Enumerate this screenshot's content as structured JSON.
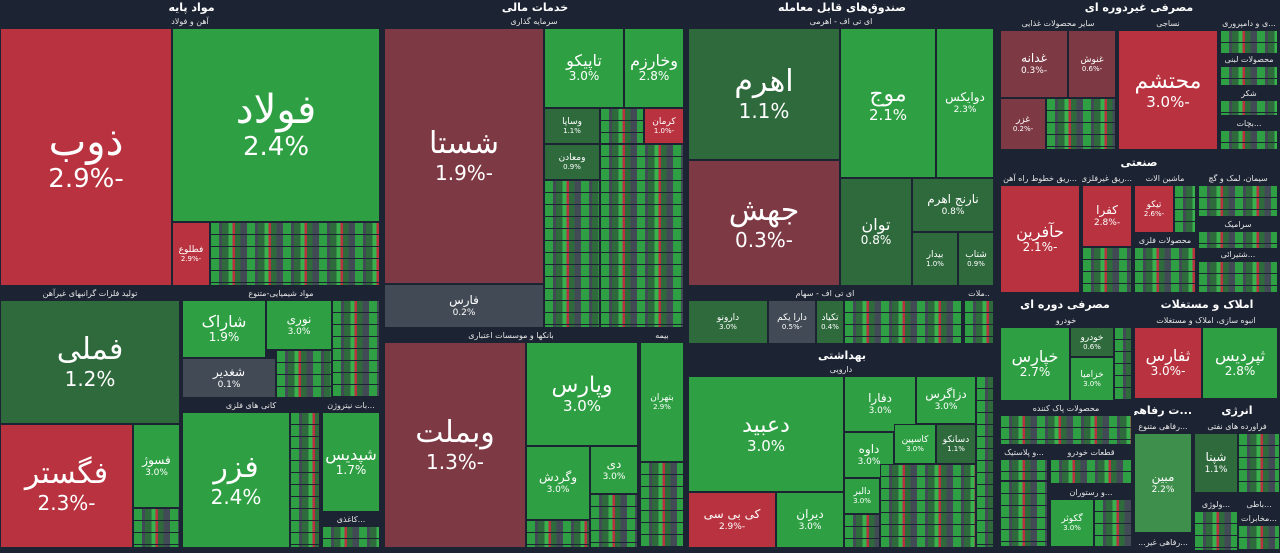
{
  "sectors": {
    "basic_materials": {
      "title": "مواد پایه",
      "iron_steel": "آهن و فولاد",
      "non_ferrous": "تولید فلزات گرانبهای غیرآهن",
      "chemicals": "مواد شیمیایی-متنوع",
      "metal_ores": "کانی های فلزی",
      "nitrogen": "...بات نیتروژن",
      "paper": "...کاغذی"
    },
    "financial": {
      "title": "خدمات مالی",
      "investment": "سرمایه گذاری",
      "banks": "بانکها و موسسات اعتباری",
      "insurance": "بیمه"
    },
    "funds": {
      "title": "صندوق‌های قابل معامله",
      "leveraged": "ای تی اف - اهرمی",
      "equity": "ای تی اف - سهام",
      "other": "..ملات"
    },
    "health": {
      "title": "بهداشتی",
      "pharma": "دارویی"
    },
    "consumer_nondurable": {
      "title": "مصرفی غیردوره ای",
      "food": "سایر محصولات غذایی",
      "textile": "نساجی",
      "dairy": "...ی و دامپروری",
      "dairy2": "محصولات لبنی",
      "sugar": "شکر",
      "drinks": "...بچات"
    },
    "industry": {
      "title": "صنعتی",
      "rail": "...ریق خطوط راه آهن",
      "tools": "...ریق غیرفلزی",
      "machinery": "ماشین الات",
      "cement": "سیمان، لمک و گچ",
      "metal_products": "محصولات فلزی",
      "ceramics": "سرامیک",
      "lime": "...شتیرائی"
    },
    "consumer_durable": {
      "title": "مصرفی دوره ای",
      "auto": "خودرو",
      "cleaning": "محصولات پاک کننده",
      "parts": "قطعات خودرو",
      "plastic": "...و پلاستیک",
      "restaurant": "...و رستوران"
    },
    "real_estate": {
      "title": "املاک و مستغلات",
      "construction": "انبوه سازی، املاک و مستغلات"
    },
    "welfare": {
      "title": "...ت رفاهی",
      "diverse": "...رفاهی متنوع",
      "retail": "...رفاهی غیر..."
    },
    "energy": {
      "title": "انرژی",
      "petroleum": "فراورده های نفتی"
    },
    "tech": {
      "title": "...باطی",
      "ict": "...ولوژی",
      "hardware": "...مخابرات"
    }
  },
  "tiles": {
    "zob": {
      "name": "ذوب",
      "change": "-2.9%"
    },
    "foulad": {
      "name": "فولاد",
      "change": "2.4%"
    },
    "fatlu": {
      "name": "فطلوع",
      "change": "-2.9%"
    },
    "fameli": {
      "name": "فملی",
      "change": "1.2%"
    },
    "fegostar": {
      "name": "فگستر",
      "change": "-2.3%"
    },
    "fesoz": {
      "name": "فسوژ",
      "change": "3.0%"
    },
    "shepna": {
      "name": "شاراک",
      "change": "1.9%"
    },
    "nori": {
      "name": "نوری",
      "change": "3.0%"
    },
    "shghadir": {
      "name": "شغدیر",
      "change": "0.1%"
    },
    "fazar": {
      "name": "فزر",
      "change": "2.4%"
    },
    "shapdis": {
      "name": "شپدیس",
      "change": "1.7%"
    },
    "shasta": {
      "name": "شستا",
      "change": "-1.9%"
    },
    "tapico": {
      "name": "تاپیکو",
      "change": "3.0%"
    },
    "vakharazm": {
      "name": "وخارزم",
      "change": "2.8%"
    },
    "vasapa": {
      "name": "وساپا",
      "change": "1.1%"
    },
    "kerman": {
      "name": "کرمان",
      "change": "-1.0%"
    },
    "vamaaden": {
      "name": "ومعادن",
      "change": "0.9%"
    },
    "farabi": {
      "name": "فارس",
      "change": "0.2%"
    },
    "vabmelat": {
      "name": "وبملت",
      "change": "-1.3%"
    },
    "vapars": {
      "name": "وپارس",
      "change": "3.0%"
    },
    "vagordesh": {
      "name": "وگردش",
      "change": "3.0%"
    },
    "di": {
      "name": "دی",
      "change": "3.0%"
    },
    "btehran": {
      "name": "بتهران",
      "change": "2.9%"
    },
    "ahrom": {
      "name": "اهرم",
      "change": "1.1%"
    },
    "mouj": {
      "name": "موج",
      "change": "2.1%"
    },
    "dowaix": {
      "name": "دوایکس",
      "change": "2.3%"
    },
    "jahesh": {
      "name": "جهش",
      "change": "-0.3%"
    },
    "tavan": {
      "name": "توان",
      "change": "0.8%"
    },
    "narenj": {
      "name": "نارنج اهرم",
      "change": "0.8%"
    },
    "bidar": {
      "name": "بیدار",
      "change": "1.0%"
    },
    "shetab": {
      "name": "شتاب",
      "change": "0.9%"
    },
    "daruno": {
      "name": "دارونو",
      "change": "3.0%"
    },
    "darayekom": {
      "name": "دارا یکم",
      "change": "-0.5%"
    },
    "takiyeh": {
      "name": "تکیاد",
      "change": "0.4%"
    },
    "dabid": {
      "name": "دعبید",
      "change": "3.0%"
    },
    "daffra": {
      "name": "دفارا",
      "change": "3.0%"
    },
    "dzagros": {
      "name": "دزاگرس",
      "change": "3.0%"
    },
    "dava": {
      "name": "داوه",
      "change": "3.0%"
    },
    "kaspin": {
      "name": "کاسپین",
      "change": "3.0%"
    },
    "dasanko": {
      "name": "دسانکو",
      "change": "1.1%"
    },
    "kibisi": {
      "name": "کی بی سی",
      "change": "-2.9%"
    },
    "diran": {
      "name": "دیران",
      "change": "3.0%"
    },
    "dalber": {
      "name": "دالبر",
      "change": "3.0%"
    },
    "ghadana": {
      "name": "غدانه",
      "change": "-0.3%"
    },
    "ghanush": {
      "name": "غنوش",
      "change": "-0.6%"
    },
    "ghazar": {
      "name": "غزر",
      "change": "-0.2%"
    },
    "mohtasham": {
      "name": "محتشم",
      "change": "-3.0%"
    },
    "hafarin": {
      "name": "حآفرین",
      "change": "-2.1%"
    },
    "kafra": {
      "name": "کفرا",
      "change": "-2.8%"
    },
    "tikko": {
      "name": "تیکو",
      "change": "-2.6%"
    },
    "khepars": {
      "name": "خپارس",
      "change": "2.7%"
    },
    "khodro": {
      "name": "خودرو",
      "change": "0.6%"
    },
    "kharmaya": {
      "name": "خزامیا",
      "change": "3.0%"
    },
    "sefars": {
      "name": "ثفارس",
      "change": "-3.0%"
    },
    "separdis": {
      "name": "ثپردیس",
      "change": "2.8%"
    },
    "mobin": {
      "name": "مبین",
      "change": "2.2%"
    },
    "shpana": {
      "name": "شپنا",
      "change": "1.1%"
    },
    "gogtar": {
      "name": "گکوثر",
      "change": "3.0%"
    }
  }
}
